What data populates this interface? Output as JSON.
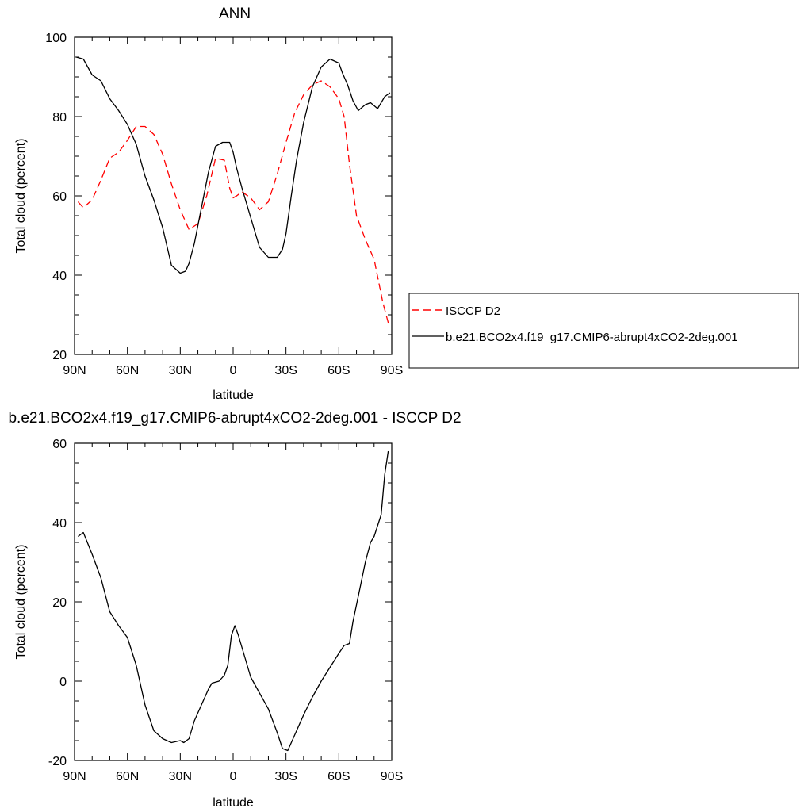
{
  "chart_data": [
    {
      "type": "line",
      "title": "ANN",
      "xlabel": "latitude",
      "ylabel": "Total cloud (percent)",
      "xlim": [
        90,
        -90
      ],
      "ylim": [
        20,
        100
      ],
      "x_ticks": [
        90,
        60,
        30,
        0,
        -30,
        -60,
        -90
      ],
      "x_tick_labels": [
        "90N",
        "60N",
        "30N",
        "0",
        "30S",
        "60S",
        "90S"
      ],
      "y_ticks": [
        20,
        40,
        60,
        80,
        100
      ],
      "y_tick_labels": [
        "20",
        "40",
        "60",
        "80",
        "100"
      ],
      "grid": false,
      "legend_position": "right",
      "series": [
        {
          "name": "ISCCP D2",
          "color": "#ff0000",
          "dash": "dashed",
          "x": [
            88,
            85,
            80,
            75,
            70,
            65,
            60,
            55,
            50,
            45,
            40,
            35,
            30,
            25,
            20,
            15,
            10,
            5,
            2,
            0,
            -2,
            -5,
            -10,
            -15,
            -20,
            -25,
            -30,
            -35,
            -40,
            -45,
            -50,
            -55,
            -60,
            -63,
            -66,
            -70,
            -75,
            -80,
            -85,
            -88
          ],
          "y": [
            58.5,
            57,
            59,
            64,
            69.5,
            71,
            74,
            77.5,
            77.5,
            75.5,
            70.5,
            63,
            56.5,
            51.5,
            53,
            60,
            69.5,
            69,
            62,
            59.5,
            60,
            61,
            59.5,
            56.5,
            58.5,
            65.5,
            73.5,
            81,
            85.5,
            88,
            89,
            87.5,
            84.5,
            80,
            68,
            55,
            49,
            44,
            33,
            28
          ]
        },
        {
          "name": "b.e21.BCO2x4.f19_g17.CMIP6-abrupt4xCO2-2deg.001",
          "color": "#000000",
          "dash": "solid",
          "x": [
            89,
            85,
            80,
            75,
            70,
            65,
            60,
            55,
            50,
            45,
            40,
            35,
            30,
            27,
            25,
            22,
            18,
            14,
            10,
            6,
            2,
            0,
            -2,
            -5,
            -10,
            -15,
            -20,
            -25,
            -28,
            -30,
            -33,
            -36,
            -40,
            -45,
            -50,
            -55,
            -60,
            -62,
            -65,
            -68,
            -71,
            -75,
            -78,
            -82,
            -86,
            -89
          ],
          "y": [
            95,
            94.5,
            90.5,
            89,
            84.5,
            81.5,
            78,
            73,
            65,
            59,
            52,
            42.5,
            40.5,
            41,
            43,
            48,
            57,
            66,
            72.5,
            73.5,
            73.5,
            71,
            67,
            62,
            54.5,
            47,
            44.5,
            44.5,
            46.5,
            50.5,
            60,
            69,
            78.5,
            87.5,
            92.5,
            94.5,
            93.5,
            91,
            88,
            84,
            81.5,
            83,
            83.5,
            82,
            85,
            86
          ]
        }
      ]
    },
    {
      "type": "line",
      "title": "b.e21.BCO2x4.f19_g17.CMIP6-abrupt4xCO2-2deg.001 - ISCCP D2",
      "xlabel": "latitude",
      "ylabel": "Total cloud (percent)",
      "xlim": [
        90,
        -90
      ],
      "ylim": [
        -20,
        60
      ],
      "x_ticks": [
        90,
        60,
        30,
        0,
        -30,
        -60,
        -90
      ],
      "x_tick_labels": [
        "90N",
        "60N",
        "30N",
        "0",
        "30S",
        "60S",
        "90S"
      ],
      "y_ticks": [
        -20,
        0,
        20,
        40,
        60
      ],
      "y_tick_labels": [
        "-20",
        "0",
        "20",
        "40",
        "60"
      ],
      "grid": false,
      "series": [
        {
          "color": "#000000",
          "dash": "solid",
          "x": [
            88,
            85,
            80,
            75,
            70,
            65,
            60,
            55,
            50,
            45,
            40,
            35,
            30,
            28,
            25,
            22,
            18,
            14,
            12,
            8,
            5,
            3,
            1,
            -1,
            -3,
            -5,
            -10,
            -15,
            -20,
            -25,
            -28,
            -31,
            -35,
            -40,
            -45,
            -50,
            -55,
            -60,
            -63,
            -66,
            -68,
            -72,
            -75,
            -78,
            -80,
            -84,
            -86,
            -88
          ],
          "y": [
            36.5,
            37.5,
            32,
            26,
            17.5,
            14,
            11,
            4,
            -6,
            -12.5,
            -14.5,
            -15.5,
            -15,
            -15.5,
            -14.5,
            -10,
            -6,
            -2,
            -0.5,
            0,
            1.5,
            4,
            11.5,
            14,
            11.5,
            8.5,
            1,
            -3,
            -7,
            -13,
            -17,
            -17.5,
            -13.5,
            -8.5,
            -4,
            0,
            3.5,
            7,
            9,
            9.5,
            15,
            23.5,
            30,
            35,
            36.5,
            42,
            52,
            58
          ]
        }
      ]
    }
  ]
}
